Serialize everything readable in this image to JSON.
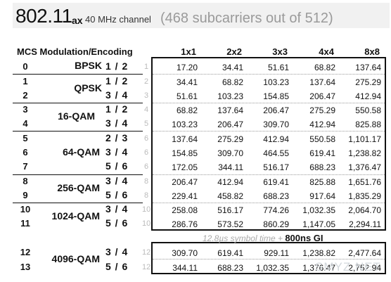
{
  "title": {
    "main": "802.11",
    "sub": "ax",
    "desc": "40 MHz channel",
    "note": "(468 subcarriers out of 512)"
  },
  "headers": {
    "mcs_mod": "MCS Modulation/Encoding",
    "cols": [
      "1x1",
      "2x2",
      "3x3",
      "4x4",
      "8x8"
    ]
  },
  "rows": [
    {
      "mcs": "0",
      "enc": "1 / 2",
      "idx": "1",
      "v": [
        "17.20",
        "34.41",
        "51.61",
        "68.82",
        "137.64"
      ]
    },
    {
      "mcs": "1",
      "enc": "1 / 2",
      "idx": "2",
      "v": [
        "34.41",
        "68.82",
        "103.23",
        "137.64",
        "275.29"
      ]
    },
    {
      "mcs": "2",
      "enc": "3 / 4",
      "idx": "3",
      "v": [
        "51.61",
        "103.23",
        "154.85",
        "206.47",
        "412.94"
      ]
    },
    {
      "mcs": "3",
      "enc": "1 / 2",
      "idx": "4",
      "v": [
        "68.82",
        "137.64",
        "206.47",
        "275.29",
        "550.58"
      ]
    },
    {
      "mcs": "4",
      "enc": "3 / 4",
      "idx": "5",
      "v": [
        "103.23",
        "206.47",
        "309.70",
        "412.94",
        "825.88"
      ]
    },
    {
      "mcs": "5",
      "enc": "2 / 3",
      "idx": "6",
      "v": [
        "137.64",
        "275.29",
        "412.94",
        "550.58",
        "1,101.17"
      ]
    },
    {
      "mcs": "6",
      "enc": "3 / 4",
      "idx": "6",
      "v": [
        "154.85",
        "309.70",
        "464.55",
        "619.41",
        "1,238.82"
      ]
    },
    {
      "mcs": "7",
      "enc": "5 / 6",
      "idx": "6",
      "v": [
        "172.05",
        "344.11",
        "516.17",
        "688.23",
        "1,376.47"
      ]
    },
    {
      "mcs": "8",
      "enc": "3 / 4",
      "idx": "8",
      "v": [
        "206.47",
        "412.94",
        "619.41",
        "825.88",
        "1,651.76"
      ]
    },
    {
      "mcs": "9",
      "enc": "5 / 6",
      "idx": "8",
      "v": [
        "229.41",
        "458.82",
        "688.23",
        "917.64",
        "1,835.29"
      ]
    },
    {
      "mcs": "10",
      "enc": "3 / 4",
      "idx": "10",
      "v": [
        "258.08",
        "516.17",
        "774.26",
        "1,032.35",
        "2,064.70"
      ]
    },
    {
      "mcs": "11",
      "enc": "5 / 6",
      "idx": "10",
      "v": [
        "286.76",
        "573.52",
        "860.29",
        "1,147.05",
        "2,294.11"
      ]
    },
    {
      "mcs": "12",
      "enc": "3 / 4",
      "idx": "12",
      "v": [
        "309.70",
        "619.41",
        "929.11",
        "1,238.82",
        "2,477.64"
      ]
    },
    {
      "mcs": "13",
      "enc": "5 / 6",
      "idx": "12",
      "v": [
        "344.11",
        "688.23",
        "1,032.35",
        "1,376.47",
        "2,752.94"
      ]
    }
  ],
  "modulations": [
    "BPSK",
    "QPSK",
    "16-QAM",
    "64-QAM",
    "256-QAM",
    "1024-QAM",
    "4096-QAM"
  ],
  "gi_note": {
    "italic": "12.8µs symbol time +",
    "bold": "800ns GI"
  },
  "watermark": "SMYZ.NET"
}
